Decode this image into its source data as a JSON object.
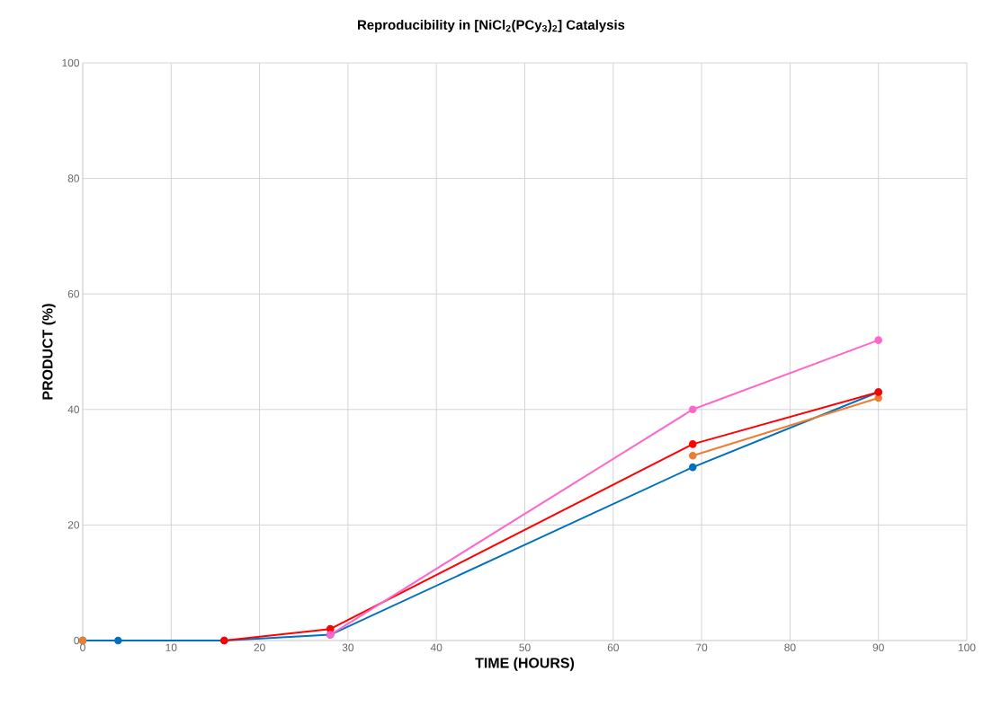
{
  "chart_data": {
    "type": "line",
    "title": "Reproducibility in [NiCl$_{2}$(PCy$_{3}$)$_{2}$] Catalysis",
    "xlabel": "TIME (HOURS)",
    "ylabel": "PRODUCT (%)",
    "xlim": [
      0,
      100
    ],
    "xticks": [
      0,
      10,
      20,
      30,
      40,
      50,
      60,
      70,
      80,
      90,
      100
    ],
    "ylim": [
      0,
      100
    ],
    "yticks": [
      0,
      20,
      40,
      60,
      80,
      100
    ],
    "grid": true,
    "marker": "circle",
    "line_style": "solid",
    "series": [
      {
        "color": "#0070c0",
        "x": [
          0,
          4,
          16,
          28,
          69,
          90
        ],
        "values": [
          0,
          0,
          0,
          1,
          30,
          43
        ]
      },
      {
        "color": "#ed7d31",
        "x": [
          0,
          28,
          69,
          90
        ],
        "values": [
          0,
          null,
          32,
          42
        ]
      },
      {
        "color": "#ff0000",
        "x": [
          16,
          28,
          69,
          90
        ],
        "values": [
          0,
          2,
          34,
          43
        ]
      },
      {
        "color": "#ff66cc",
        "x": [
          28,
          69,
          90
        ],
        "values": [
          1,
          40,
          52
        ]
      }
    ]
  }
}
